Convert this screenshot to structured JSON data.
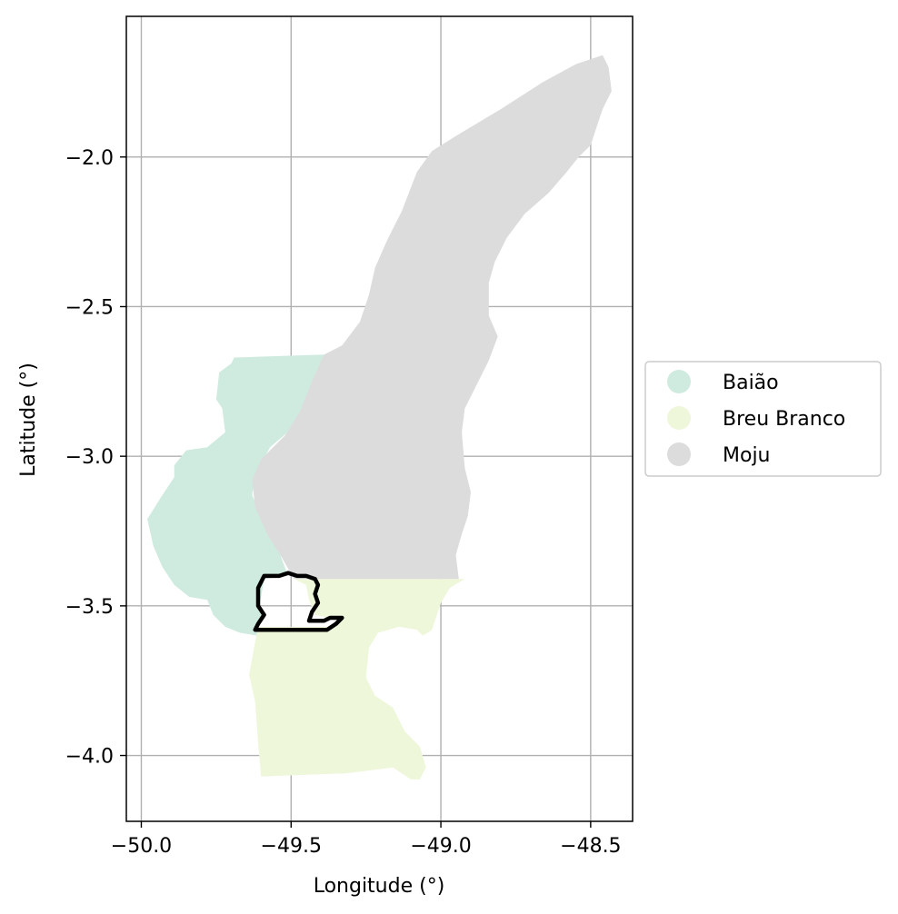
{
  "chart_data": {
    "type": "map",
    "xlabel": "Longitude (°)",
    "ylabel": "Latitude (°)",
    "xlim": [
      -50.05,
      -48.36
    ],
    "ylim": [
      -4.22,
      -1.53
    ],
    "xticks": [
      -50.0,
      -49.5,
      -49.0,
      -48.5
    ],
    "xtick_labels": [
      "−50.0",
      "−49.5",
      "−49.0",
      "−48.5"
    ],
    "yticks": [
      -2.0,
      -2.5,
      -3.0,
      -3.5,
      -4.0
    ],
    "ytick_labels": [
      "−2.0",
      "−2.5",
      "−3.0",
      "−3.5",
      "−4.0"
    ],
    "grid": true,
    "legend_position": "right",
    "regions": [
      {
        "name": "Baião",
        "color": "#cfebdf",
        "polygon": [
          [
            -49.39,
            -2.66
          ],
          [
            -49.69,
            -2.67
          ],
          [
            -49.7,
            -2.69
          ],
          [
            -49.74,
            -2.72
          ],
          [
            -49.75,
            -2.81
          ],
          [
            -49.73,
            -2.84
          ],
          [
            -49.72,
            -2.92
          ],
          [
            -49.78,
            -2.97
          ],
          [
            -49.85,
            -2.98
          ],
          [
            -49.89,
            -3.03
          ],
          [
            -49.89,
            -3.07
          ],
          [
            -49.93,
            -3.13
          ],
          [
            -49.98,
            -3.21
          ],
          [
            -49.96,
            -3.3
          ],
          [
            -49.93,
            -3.37
          ],
          [
            -49.89,
            -3.43
          ],
          [
            -49.84,
            -3.47
          ],
          [
            -49.78,
            -3.48
          ],
          [
            -49.76,
            -3.53
          ],
          [
            -49.72,
            -3.57
          ],
          [
            -49.67,
            -3.59
          ],
          [
            -49.61,
            -3.6
          ],
          [
            -49.62,
            -3.57
          ],
          [
            -49.59,
            -3.54
          ],
          [
            -49.61,
            -3.51
          ],
          [
            -49.6,
            -3.47
          ],
          [
            -49.59,
            -3.41
          ],
          [
            -49.51,
            -3.4
          ],
          [
            -49.54,
            -3.32
          ],
          [
            -49.59,
            -3.22
          ],
          [
            -49.63,
            -3.13
          ],
          [
            -49.62,
            -3.06
          ],
          [
            -49.57,
            -2.97
          ],
          [
            -49.5,
            -2.91
          ],
          [
            -49.46,
            -2.84
          ],
          [
            -49.42,
            -2.74
          ]
        ]
      },
      {
        "name": "Breu Branco",
        "color": "#eef7da",
        "polygon": [
          [
            -49.49,
            -3.41
          ],
          [
            -48.92,
            -3.41
          ],
          [
            -48.97,
            -3.44
          ],
          [
            -49.0,
            -3.49
          ],
          [
            -49.03,
            -3.58
          ],
          [
            -49.06,
            -3.6
          ],
          [
            -49.08,
            -3.58
          ],
          [
            -49.14,
            -3.57
          ],
          [
            -49.21,
            -3.59
          ],
          [
            -49.24,
            -3.64
          ],
          [
            -49.25,
            -3.74
          ],
          [
            -49.22,
            -3.8
          ],
          [
            -49.16,
            -3.84
          ],
          [
            -49.12,
            -3.92
          ],
          [
            -49.07,
            -3.97
          ],
          [
            -49.05,
            -4.04
          ],
          [
            -49.07,
            -4.08
          ],
          [
            -49.1,
            -4.08
          ],
          [
            -49.13,
            -4.06
          ],
          [
            -49.16,
            -4.04
          ],
          [
            -49.32,
            -4.06
          ],
          [
            -49.6,
            -4.07
          ],
          [
            -49.61,
            -3.96
          ],
          [
            -49.62,
            -3.82
          ],
          [
            -49.64,
            -3.73
          ],
          [
            -49.62,
            -3.62
          ],
          [
            -49.61,
            -3.57
          ],
          [
            -49.38,
            -3.57
          ],
          [
            -49.33,
            -3.55
          ],
          [
            -49.42,
            -3.53
          ],
          [
            -49.44,
            -3.48
          ],
          [
            -49.45,
            -3.43
          ]
        ]
      },
      {
        "name": "Moju",
        "color": "#dcdcdc",
        "polygon": [
          [
            -48.46,
            -1.66
          ],
          [
            -48.44,
            -1.7
          ],
          [
            -48.43,
            -1.78
          ],
          [
            -48.46,
            -1.84
          ],
          [
            -48.48,
            -1.9
          ],
          [
            -48.5,
            -1.96
          ],
          [
            -48.54,
            -2.0
          ],
          [
            -48.58,
            -2.05
          ],
          [
            -48.64,
            -2.12
          ],
          [
            -48.72,
            -2.19
          ],
          [
            -48.78,
            -2.27
          ],
          [
            -48.82,
            -2.35
          ],
          [
            -48.84,
            -2.42
          ],
          [
            -48.84,
            -2.53
          ],
          [
            -48.81,
            -2.6
          ],
          [
            -48.84,
            -2.68
          ],
          [
            -48.88,
            -2.76
          ],
          [
            -48.92,
            -2.84
          ],
          [
            -48.93,
            -2.92
          ],
          [
            -48.92,
            -3.04
          ],
          [
            -48.9,
            -3.12
          ],
          [
            -48.91,
            -3.2
          ],
          [
            -48.93,
            -3.26
          ],
          [
            -48.95,
            -3.33
          ],
          [
            -48.94,
            -3.41
          ],
          [
            -49.49,
            -3.41
          ],
          [
            -49.53,
            -3.34
          ],
          [
            -49.58,
            -3.26
          ],
          [
            -49.62,
            -3.17
          ],
          [
            -49.63,
            -3.08
          ],
          [
            -49.6,
            -3.01
          ],
          [
            -49.52,
            -2.93
          ],
          [
            -49.47,
            -2.85
          ],
          [
            -49.43,
            -2.75
          ],
          [
            -49.39,
            -2.66
          ],
          [
            -49.33,
            -2.63
          ],
          [
            -49.27,
            -2.55
          ],
          [
            -49.24,
            -2.46
          ],
          [
            -49.22,
            -2.37
          ],
          [
            -49.18,
            -2.28
          ],
          [
            -49.13,
            -2.18
          ],
          [
            -49.08,
            -2.05
          ],
          [
            -49.03,
            -1.98
          ],
          [
            -48.95,
            -1.93
          ],
          [
            -48.8,
            -1.84
          ],
          [
            -48.66,
            -1.75
          ],
          [
            -48.55,
            -1.69
          ]
        ]
      }
    ],
    "outline": {
      "color": "#000000",
      "polygon": [
        [
          -49.59,
          -3.4
        ],
        [
          -49.54,
          -3.4
        ],
        [
          -49.51,
          -3.39
        ],
        [
          -49.48,
          -3.4
        ],
        [
          -49.45,
          -3.4
        ],
        [
          -49.42,
          -3.41
        ],
        [
          -49.41,
          -3.43
        ],
        [
          -49.42,
          -3.46
        ],
        [
          -49.41,
          -3.49
        ],
        [
          -49.43,
          -3.52
        ],
        [
          -49.44,
          -3.55
        ],
        [
          -49.39,
          -3.55
        ],
        [
          -49.37,
          -3.54
        ],
        [
          -49.33,
          -3.54
        ],
        [
          -49.35,
          -3.56
        ],
        [
          -49.38,
          -3.58
        ],
        [
          -49.45,
          -3.58
        ],
        [
          -49.55,
          -3.58
        ],
        [
          -49.62,
          -3.58
        ],
        [
          -49.61,
          -3.56
        ],
        [
          -49.59,
          -3.53
        ],
        [
          -49.61,
          -3.5
        ],
        [
          -49.61,
          -3.47
        ],
        [
          -49.61,
          -3.44
        ],
        [
          -49.6,
          -3.42
        ]
      ]
    },
    "legend": [
      {
        "label": "Baião",
        "color": "#cfebdf"
      },
      {
        "label": "Breu Branco",
        "color": "#eef7da"
      },
      {
        "label": "Moju",
        "color": "#dcdcdc"
      }
    ]
  }
}
